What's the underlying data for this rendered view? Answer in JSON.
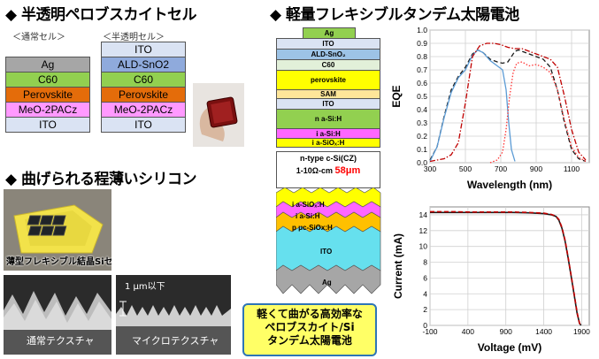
{
  "headings": {
    "perovskite": "◆ 半透明ペロブスカイトセル",
    "silicon": "◆ 曲げられる程薄いシリコン",
    "tandem": "◆ 軽量フレキシブルタンデム太陽電池"
  },
  "cells": {
    "normal_label": "＜通常セル＞",
    "semi_label": "＜半透明セル＞",
    "normal_layers": [
      {
        "name": "Ag",
        "color": "#a6a6a6"
      },
      {
        "name": "C60",
        "color": "#92d050"
      },
      {
        "name": "Perovskite",
        "color": "#e46c0a"
      },
      {
        "name": "MeO-2PACz",
        "color": "#ff99ff"
      },
      {
        "name": "ITO",
        "color": "#dae3f3"
      }
    ],
    "semi_layers": [
      {
        "name": "ITO",
        "color": "#dae3f3"
      },
      {
        "name": "ALD-SnO2",
        "color": "#8faadc"
      },
      {
        "name": "C60",
        "color": "#92d050"
      },
      {
        "name": "Perovskite",
        "color": "#e46c0a"
      },
      {
        "name": "MeO-2PACz",
        "color": "#ff99ff"
      },
      {
        "name": "ITO",
        "color": "#dae3f3"
      }
    ]
  },
  "photos": {
    "flexible_label": "薄型フレキシブル結晶Siセル",
    "normal_texture": "通常テクスチャ",
    "micro_texture": "マイクロテクスチャ",
    "micro_scale": "1 μm以下"
  },
  "tandem_stack": {
    "layers": [
      {
        "name": "Ag",
        "color": "#92d050"
      },
      {
        "name": "ITO",
        "color": "#dae3f3"
      },
      {
        "name": "ALD-SnO₂",
        "color": "#9dc3e6"
      },
      {
        "name": "C60",
        "color": "#e2f0d9"
      },
      {
        "name": "perovskite",
        "color": "#ffff00"
      },
      {
        "name": "SAM",
        "color": "#ffe699"
      },
      {
        "name": "ITO",
        "color": "#dae3f3"
      },
      {
        "name": "n a-Si:H",
        "color": "#92d050"
      },
      {
        "name": "i a-Si:H",
        "color": "#ff66ff"
      },
      {
        "name": "i a-SiOₓ:H",
        "color": "#ffff00"
      }
    ],
    "csi_label_1": "n-type c-Si(CZ)",
    "csi_label_2": "1-10Ω-cm",
    "csi_thickness": "58μm",
    "back_layers": [
      "i a-SiOₓ:H",
      "i a-Si:H",
      "p μc-SiOx:H"
    ],
    "back_ito": "ITO",
    "back_ag": "Ag"
  },
  "callout": {
    "line1": "軽くて曲がる高効率な",
    "line2": "ペロブスカイト/Si",
    "line3": "タンデム太陽電池"
  },
  "colors": {
    "black_series": "#1a1a1a",
    "red_series": "#c00000",
    "blue_series": "#5b9bd5",
    "red_dot_series": "#ff3333"
  },
  "eqe_chart": {
    "type": "line",
    "xlabel": "Wavelength (nm)",
    "ylabel": "EQE",
    "xlim": [
      300,
      1200
    ],
    "ylim": [
      0,
      1.0
    ],
    "xticks": [
      300,
      500,
      700,
      900,
      1100
    ],
    "yticks": [
      0,
      0.1,
      0.2,
      0.3,
      0.4,
      0.5,
      0.6,
      0.7,
      0.8,
      0.9,
      1.0
    ],
    "ytick_labels": [
      "0.0",
      "0.1",
      "0.2",
      "0.3",
      "0.4",
      "0.5",
      "0.6",
      "0.7",
      "0.8",
      "0.9",
      "1.0"
    ],
    "grid": true,
    "series": [
      {
        "style": "dashed",
        "color": "#1a1a1a",
        "x": [
          300,
          340,
          380,
          420,
          460,
          500,
          540,
          570,
          600,
          640,
          680,
          710,
          740,
          760,
          780,
          800,
          820,
          860,
          900,
          940,
          980,
          1020,
          1060,
          1100,
          1140,
          1180
        ],
        "y": [
          0.02,
          0.12,
          0.35,
          0.55,
          0.65,
          0.72,
          0.82,
          0.85,
          0.83,
          0.78,
          0.76,
          0.75,
          0.76,
          0.8,
          0.84,
          0.85,
          0.84,
          0.82,
          0.8,
          0.78,
          0.72,
          0.55,
          0.3,
          0.1,
          0.03,
          0.01
        ]
      },
      {
        "style": "solid",
        "color": "#5b9bd5",
        "x": [
          300,
          340,
          380,
          420,
          460,
          500,
          540,
          570,
          600,
          640,
          680,
          710,
          730,
          745,
          760,
          780
        ],
        "y": [
          0.01,
          0.12,
          0.34,
          0.53,
          0.64,
          0.7,
          0.81,
          0.85,
          0.83,
          0.77,
          0.73,
          0.7,
          0.55,
          0.3,
          0.1,
          0.01
        ]
      },
      {
        "style": "dashdot",
        "color": "#c00000",
        "x": [
          300,
          340,
          380,
          420,
          460,
          500,
          540,
          580,
          620,
          660,
          700,
          740,
          780,
          820,
          860,
          900,
          940,
          980,
          1020,
          1060,
          1100,
          1140,
          1180
        ],
        "y": [
          0.01,
          0.02,
          0.03,
          0.06,
          0.15,
          0.45,
          0.8,
          0.88,
          0.9,
          0.9,
          0.89,
          0.87,
          0.86,
          0.86,
          0.84,
          0.82,
          0.8,
          0.78,
          0.72,
          0.5,
          0.25,
          0.08,
          0.02
        ]
      },
      {
        "style": "dotted",
        "color": "#ff3333",
        "x": [
          640,
          680,
          710,
          730,
          750,
          770,
          790,
          820,
          860,
          900,
          940,
          980,
          1020,
          1060,
          1100,
          1140,
          1180
        ],
        "y": [
          0.0,
          0.02,
          0.08,
          0.25,
          0.5,
          0.68,
          0.75,
          0.76,
          0.73,
          0.74,
          0.72,
          0.68,
          0.55,
          0.32,
          0.12,
          0.04,
          0.01
        ]
      }
    ]
  },
  "iv_chart": {
    "type": "line",
    "xlabel": "Voltage (mV)",
    "ylabel": "Current (mA)",
    "xlim": [
      -100,
      2000
    ],
    "ylim": [
      0,
      15
    ],
    "xticks": [
      -100,
      400,
      900,
      1400,
      1900
    ],
    "yticks": [
      0,
      2,
      4,
      6,
      8,
      10,
      12,
      14
    ],
    "grid": true,
    "series": [
      {
        "style": "solid",
        "color": "#1a1a1a",
        "x": [
          -100,
          0,
          200,
          400,
          600,
          800,
          1000,
          1200,
          1400,
          1500,
          1560,
          1600,
          1640,
          1680,
          1720,
          1760,
          1800,
          1840,
          1870,
          1890
        ],
        "y": [
          14.3,
          14.3,
          14.3,
          14.3,
          14.3,
          14.3,
          14.3,
          14.25,
          14.15,
          14.0,
          13.8,
          13.3,
          12.3,
          10.7,
          8.6,
          6.3,
          3.9,
          1.5,
          0.3,
          0
        ]
      },
      {
        "style": "dashed",
        "color": "#c00000",
        "x": [
          -100,
          0,
          200,
          400,
          600,
          800,
          1000,
          1200,
          1400,
          1500,
          1560,
          1600,
          1640,
          1680,
          1720,
          1760,
          1800,
          1840,
          1870,
          1885
        ],
        "y": [
          14.4,
          14.4,
          14.4,
          14.35,
          14.35,
          14.35,
          14.35,
          14.3,
          14.2,
          14.05,
          13.85,
          13.4,
          12.4,
          10.8,
          8.7,
          6.4,
          4.0,
          1.6,
          0.3,
          0
        ]
      }
    ]
  }
}
